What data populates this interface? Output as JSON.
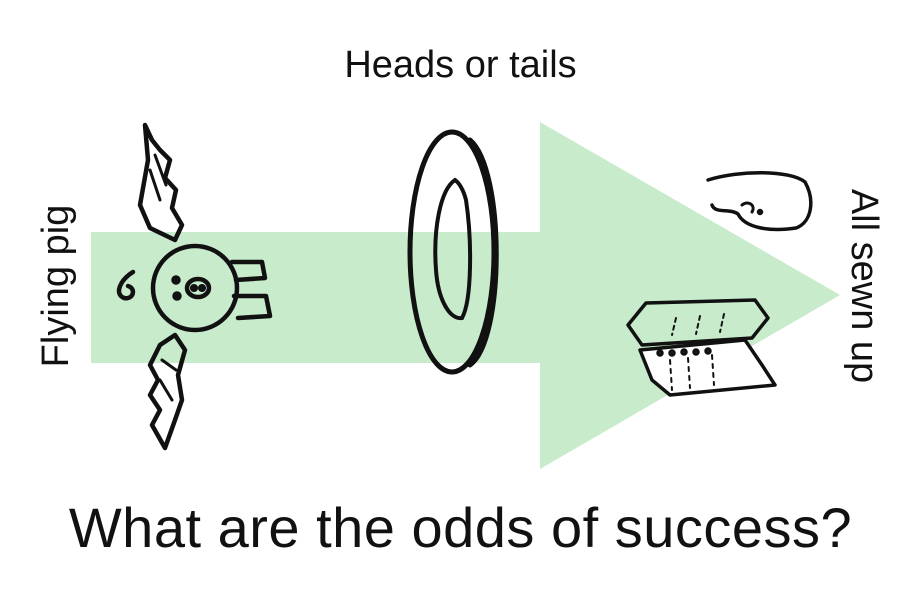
{
  "labels": {
    "top": "Heads or tails",
    "left": "Flying pig",
    "right": "All sewn up",
    "bottom": "What are the odds of success?"
  },
  "colors": {
    "arrow_fill": "#c8ebcc",
    "ink": "#111111",
    "background": "#ffffff"
  },
  "icons": [
    "flying-pig-icon",
    "coin-icon",
    "stitched-fabric-icon"
  ]
}
